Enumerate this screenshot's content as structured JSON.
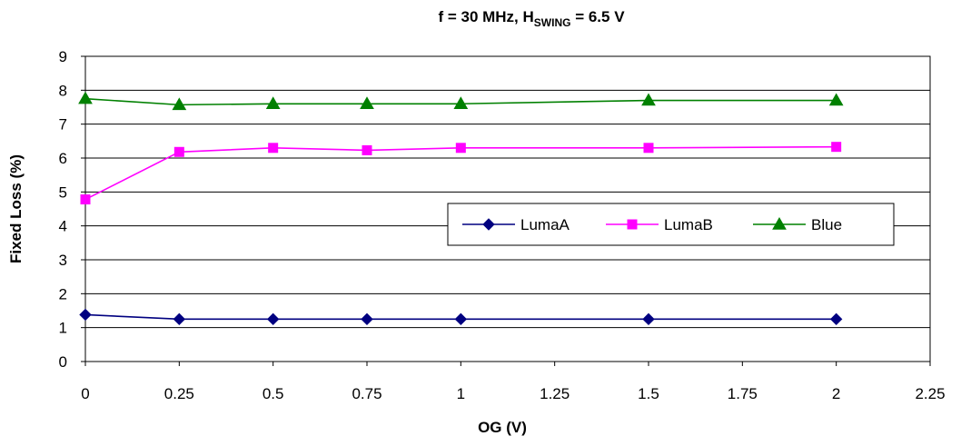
{
  "chart_data": {
    "type": "line",
    "title": {
      "prefix": "f = 30 MHz, H",
      "subscript": "SWING",
      "suffix": " = 6.5 V"
    },
    "xlabel": "OG (V)",
    "ylabel": "Fixed Loss (%)",
    "xlim": [
      0,
      2.25
    ],
    "ylim": [
      0,
      9
    ],
    "x_ticks": [
      "0",
      "0.25",
      "0.5",
      "0.75",
      "1",
      "1.25",
      "1.5",
      "1.75",
      "2",
      "2.25"
    ],
    "y_ticks": [
      "0",
      "1",
      "2",
      "3",
      "4",
      "5",
      "6",
      "7",
      "8",
      "9"
    ],
    "grid": "horizontal",
    "legend_position": "center-right",
    "series": [
      {
        "name": "LumaA",
        "color": "#000080",
        "marker": "diamond",
        "x": [
          0,
          0.25,
          0.5,
          0.75,
          1,
          1.5,
          2
        ],
        "y": [
          1.38,
          1.25,
          1.25,
          1.25,
          1.25,
          1.25,
          1.25
        ]
      },
      {
        "name": "LumaB",
        "color": "#ff00ff",
        "marker": "square",
        "x": [
          0,
          0.25,
          0.5,
          0.75,
          1,
          1.5,
          2
        ],
        "y": [
          4.78,
          6.18,
          6.3,
          6.23,
          6.3,
          6.3,
          6.33
        ]
      },
      {
        "name": "Blue",
        "color": "#008000",
        "marker": "triangle",
        "x": [
          0,
          0.25,
          0.5,
          0.75,
          1,
          1.5,
          2
        ],
        "y": [
          7.75,
          7.57,
          7.6,
          7.6,
          7.6,
          7.7,
          7.7
        ]
      }
    ]
  }
}
